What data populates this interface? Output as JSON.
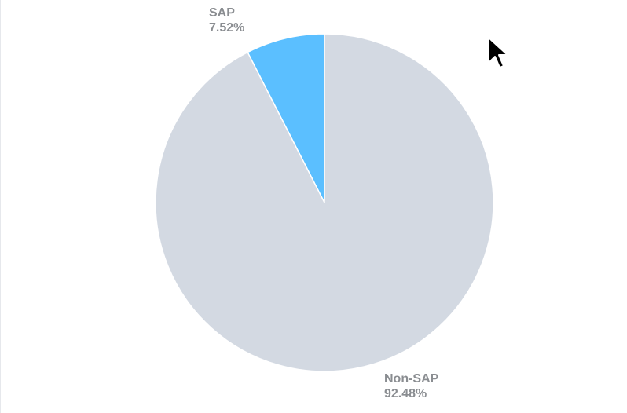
{
  "chart_data": {
    "type": "pie",
    "slices": [
      {
        "label": "SAP",
        "value": 7.52,
        "value_text": "7.52%",
        "color": "#5bbfff"
      },
      {
        "label": "Non-SAP",
        "value": 92.48,
        "value_text": "92.48%",
        "color": "#d3d9e2"
      }
    ],
    "start_angle_deg": 0,
    "direction": "counterclockwise",
    "title": "",
    "legend": "none"
  },
  "cursor": {
    "icon": "mouse-pointer-icon"
  }
}
